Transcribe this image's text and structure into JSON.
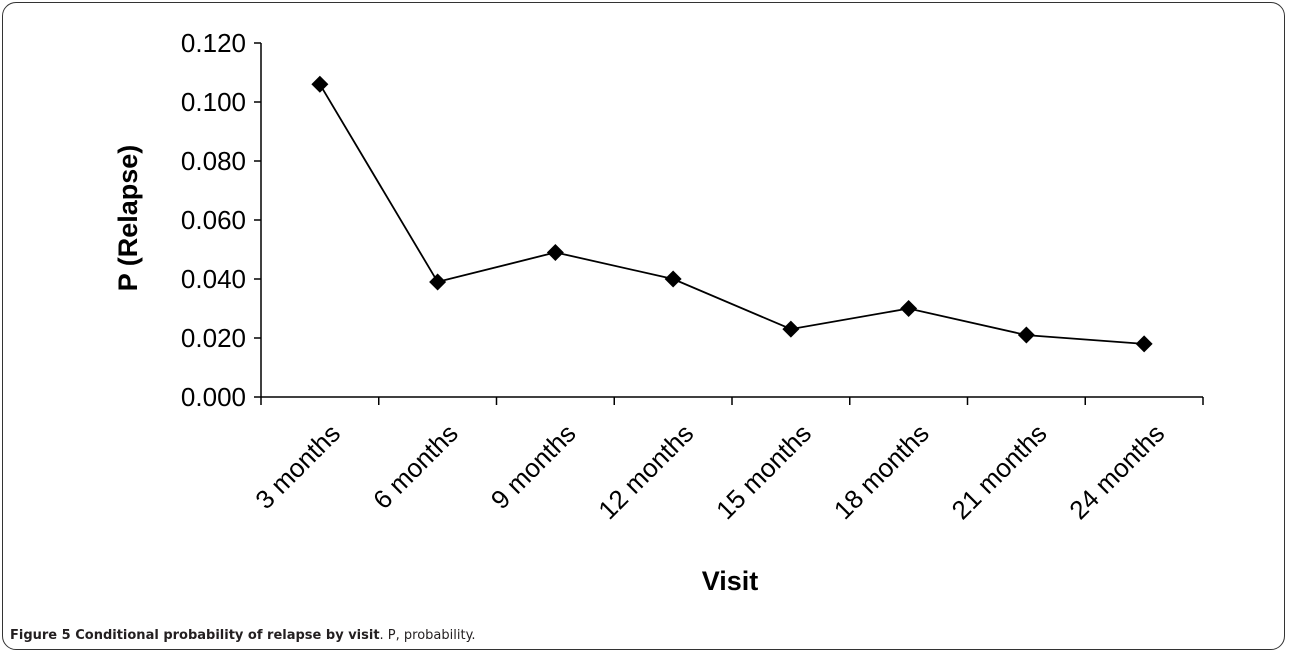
{
  "chart_data": {
    "type": "line",
    "title": "",
    "xlabel": "Visit",
    "ylabel": "P (Relapse)",
    "categories": [
      "3 months",
      "6 months",
      "9 months",
      "12 months",
      "15 months",
      "18 months",
      "21 months",
      "24 months"
    ],
    "series": [
      {
        "values": [
          0.106,
          0.039,
          0.049,
          0.04,
          0.023,
          0.03,
          0.021,
          0.018
        ]
      }
    ],
    "ylim": [
      0,
      0.12
    ],
    "yticks": [
      "0.000",
      "0.020",
      "0.040",
      "0.060",
      "0.080",
      "0.100",
      "0.120"
    ],
    "grid": false,
    "legend": "none",
    "marker": "diamond",
    "colors": {
      "line": "#000000",
      "marker": "#000000",
      "axis": "#000000",
      "frame": "#333333"
    }
  },
  "caption": {
    "label": "Figure 5 Conditional probability of relapse by visit",
    "text": ". P, probability."
  }
}
